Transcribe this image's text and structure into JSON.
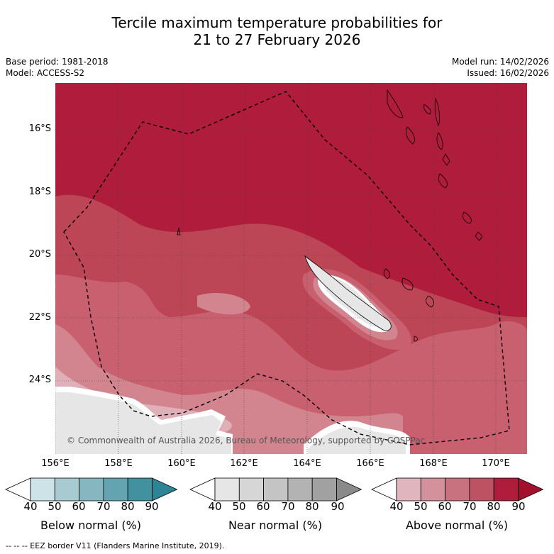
{
  "title_line1": "Tercile maximum temperature probabilities for",
  "title_line2": "21 to 27 February 2026",
  "base_period": "Base period: 1981-2018",
  "model": "Model: ACCESS-S2",
  "model_run": "Model run: 14/02/2026",
  "issued": "Issued: 16/02/2026",
  "copyright": "© Commonwealth of Australia 2026, Bureau of Meteorology, supported by COSPPac",
  "footnote": "--  --  -- EEZ border V11 (Flanders Marine Institute, 2019).",
  "lat_labels": [
    "16°S",
    "18°S",
    "20°S",
    "22°S",
    "24°S"
  ],
  "lon_labels": [
    "156°E",
    "158°E",
    "160°E",
    "162°E",
    "164°E",
    "166°E",
    "168°E",
    "170°E"
  ],
  "colorbars": [
    {
      "label": "Below normal (%)",
      "ticks": [
        "40",
        "50",
        "60",
        "70",
        "80",
        "90"
      ],
      "colors": [
        "#ffffff",
        "#cde3e8",
        "#a8cad1",
        "#86b6c0",
        "#64a3b0",
        "#42919f",
        "#2b8595"
      ]
    },
    {
      "label": "Near normal (%)",
      "ticks": [
        "40",
        "50",
        "60",
        "70",
        "80",
        "90"
      ],
      "colors": [
        "#ffffff",
        "#e6e6e6",
        "#d6d6d6",
        "#c4c4c4",
        "#b3b3b3",
        "#a1a1a1",
        "#8a8a8a"
      ]
    },
    {
      "label": "Above normal (%)",
      "ticks": [
        "40",
        "50",
        "60",
        "70",
        "80",
        "90"
      ],
      "colors": [
        "#ffffff",
        "#e0b5be",
        "#d3919d",
        "#c8717f",
        "#bd5263",
        "#b01c3b",
        "#a3102e"
      ]
    }
  ],
  "colors": {
    "above_90": "#b01c3b",
    "above_80": "#bd4656",
    "above_70": "#c8606f",
    "above_60": "#d3858f",
    "above_50": "#dfb0b8",
    "near_50": "#e6e6e6"
  }
}
